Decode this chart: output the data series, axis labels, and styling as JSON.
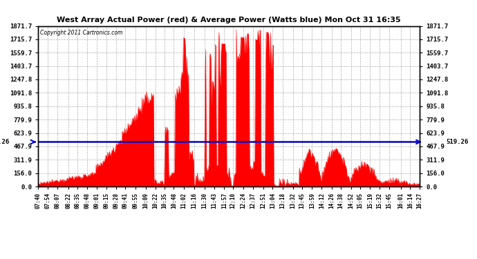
{
  "title": "West Array Actual Power (red) & Average Power (Watts blue) Mon Oct 31 16:35",
  "copyright": "Copyright 2011 Cartronics.com",
  "average_power": 519.26,
  "yticks": [
    0.0,
    156.0,
    311.9,
    467.9,
    623.9,
    779.9,
    935.8,
    1091.8,
    1247.8,
    1403.7,
    1559.7,
    1715.7,
    1871.7
  ],
  "ymax": 1871.7,
  "fill_color": "#FF0000",
  "line_color": "#0000CC",
  "background_color": "#FFFFFF",
  "grid_color": "#999999",
  "xtick_labels": [
    "07:40",
    "07:54",
    "08:07",
    "08:22",
    "08:35",
    "08:48",
    "09:01",
    "09:15",
    "09:28",
    "09:41",
    "09:55",
    "10:09",
    "10:22",
    "10:35",
    "10:48",
    "11:02",
    "11:16",
    "11:30",
    "11:43",
    "11:57",
    "12:10",
    "12:24",
    "12:37",
    "12:51",
    "13:04",
    "13:18",
    "13:32",
    "13:45",
    "13:59",
    "14:12",
    "14:26",
    "14:38",
    "14:52",
    "15:05",
    "15:19",
    "15:32",
    "15:45",
    "16:01",
    "16:14",
    "16:27"
  ]
}
